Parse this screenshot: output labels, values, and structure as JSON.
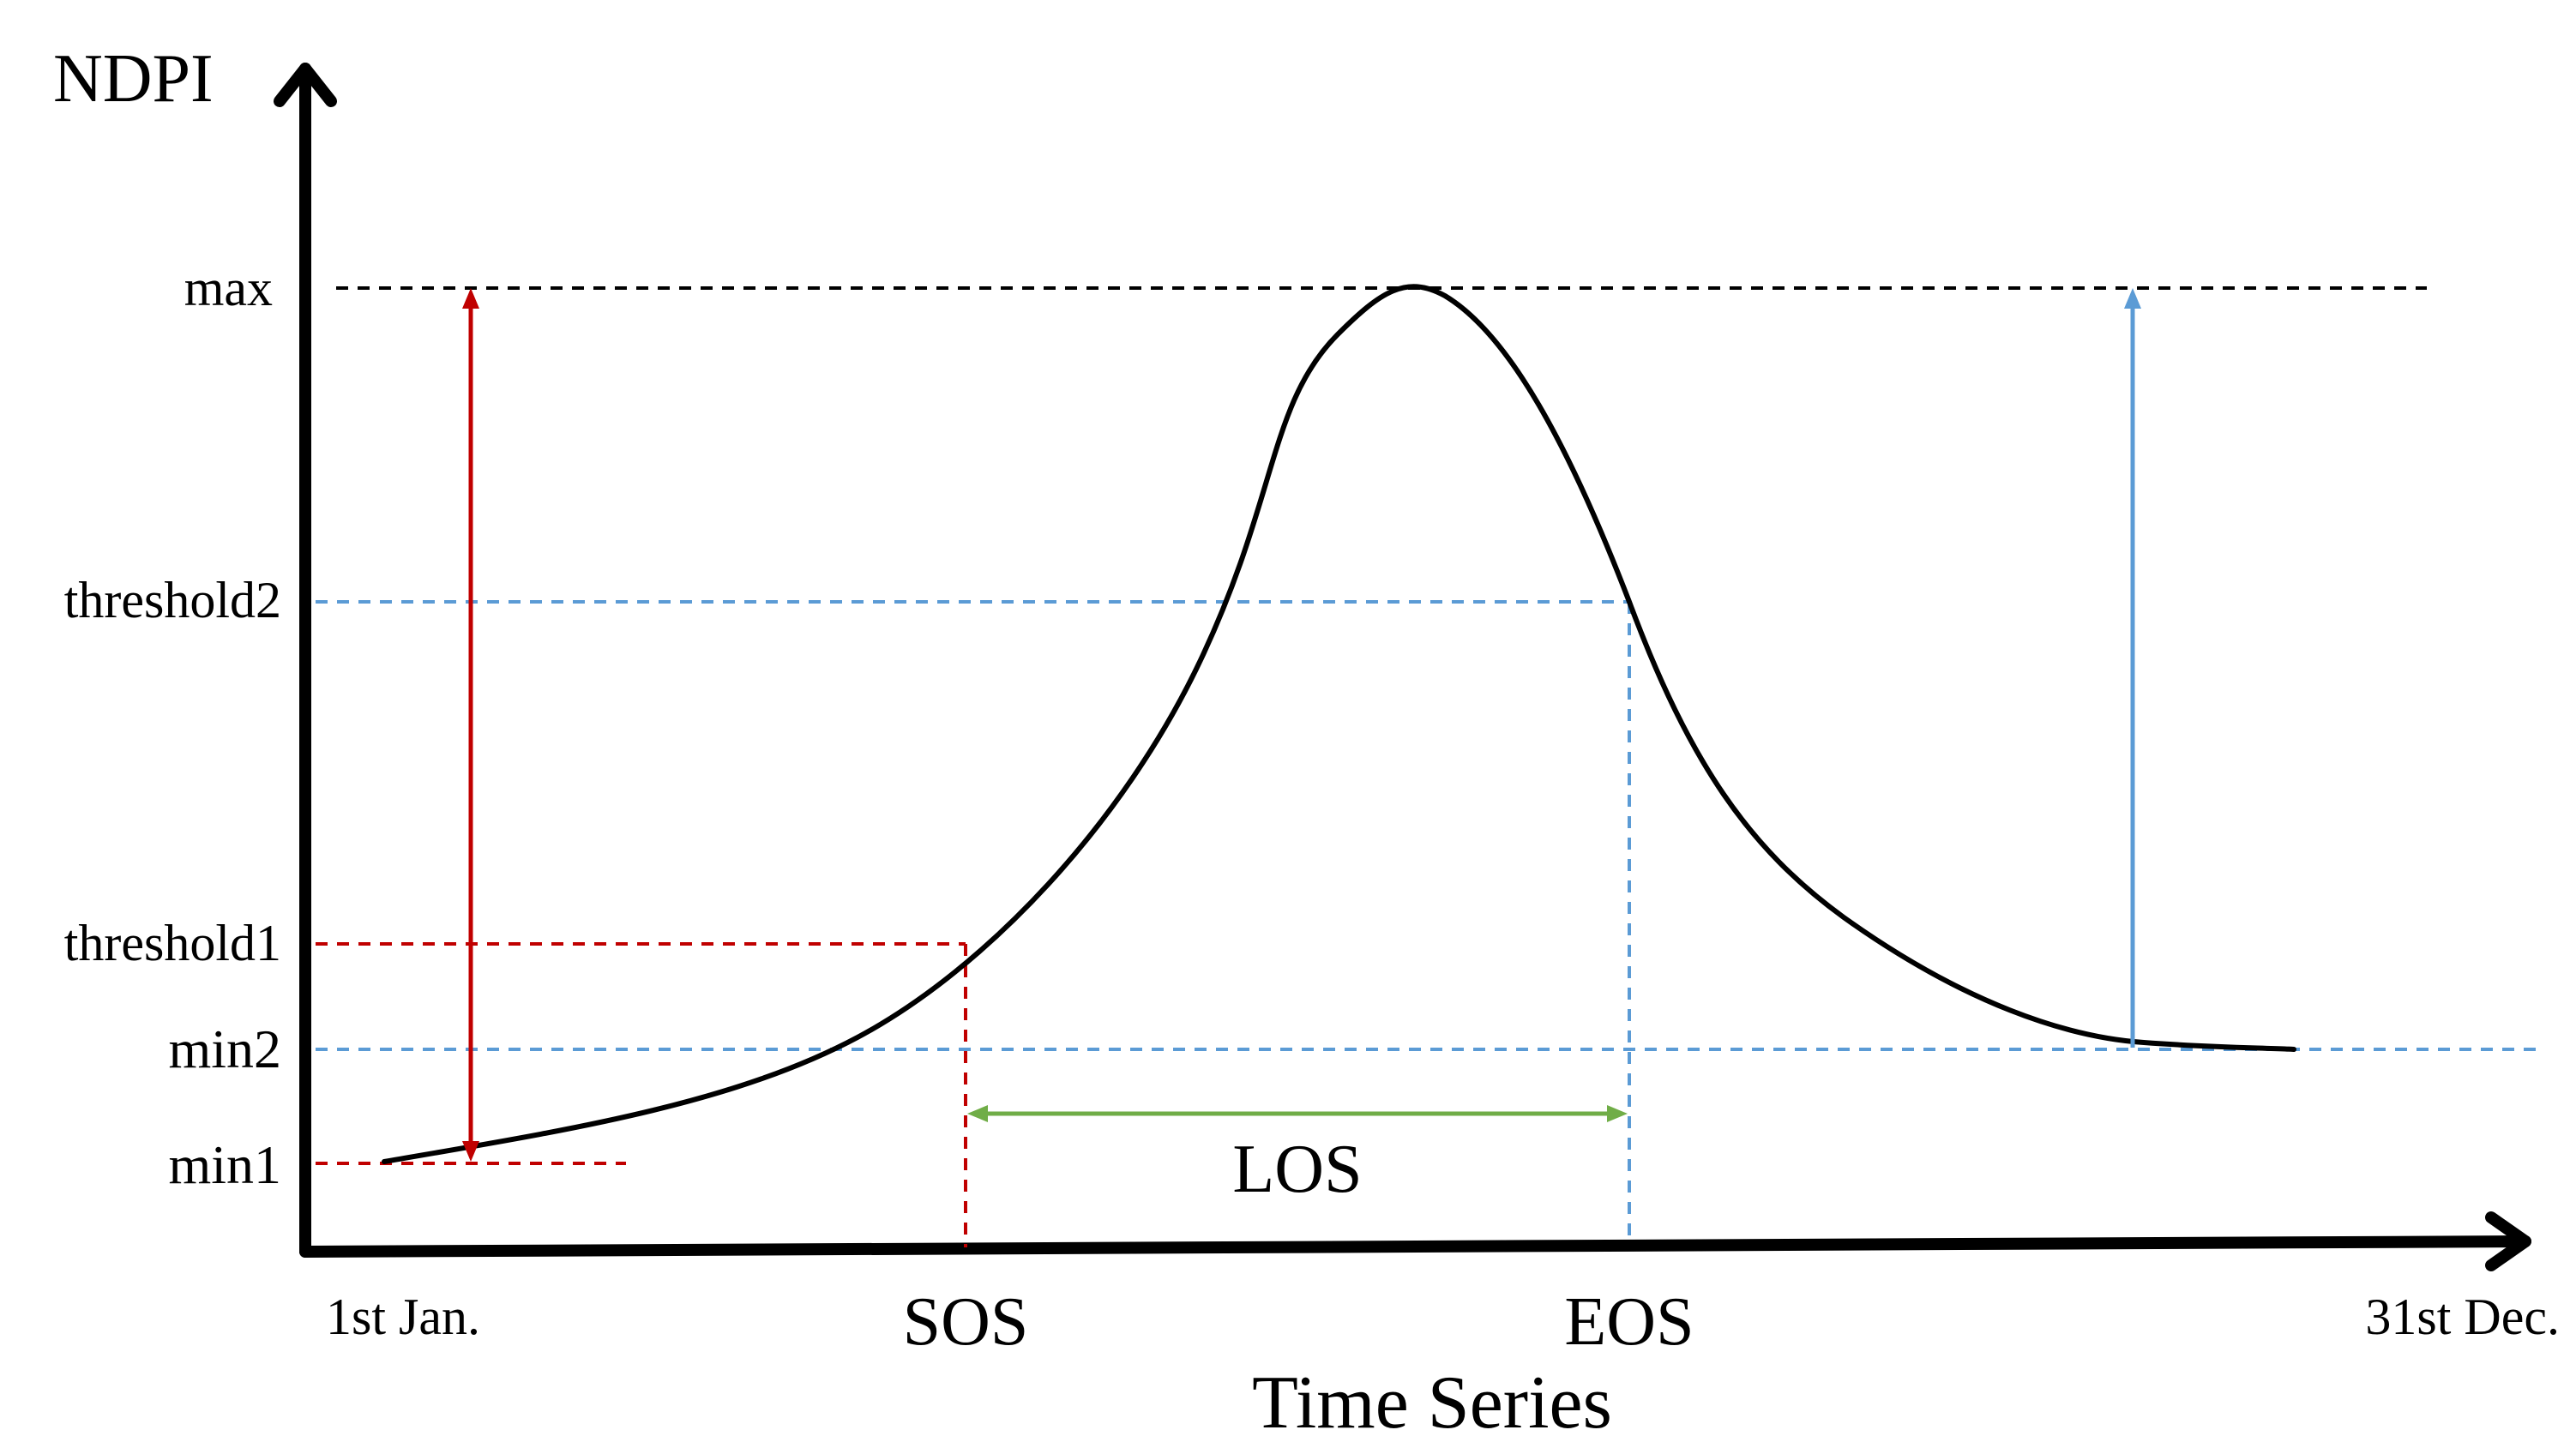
{
  "y_axis": {
    "label": "NDPI"
  },
  "x_axis": {
    "label": "Time Series",
    "start_label": "1st Jan.",
    "end_label": "31st Dec."
  },
  "levels": {
    "max": "max",
    "threshold2": "threshold2",
    "threshold1": "threshold1",
    "min2": "min2",
    "min1": "min1"
  },
  "markers": {
    "sos": "SOS",
    "eos": "EOS",
    "los": "LOS"
  },
  "colors": {
    "axis": "#000000",
    "curve": "#000000",
    "red": "#c00000",
    "blue": "#5b9bd5",
    "green": "#70ad47"
  }
}
